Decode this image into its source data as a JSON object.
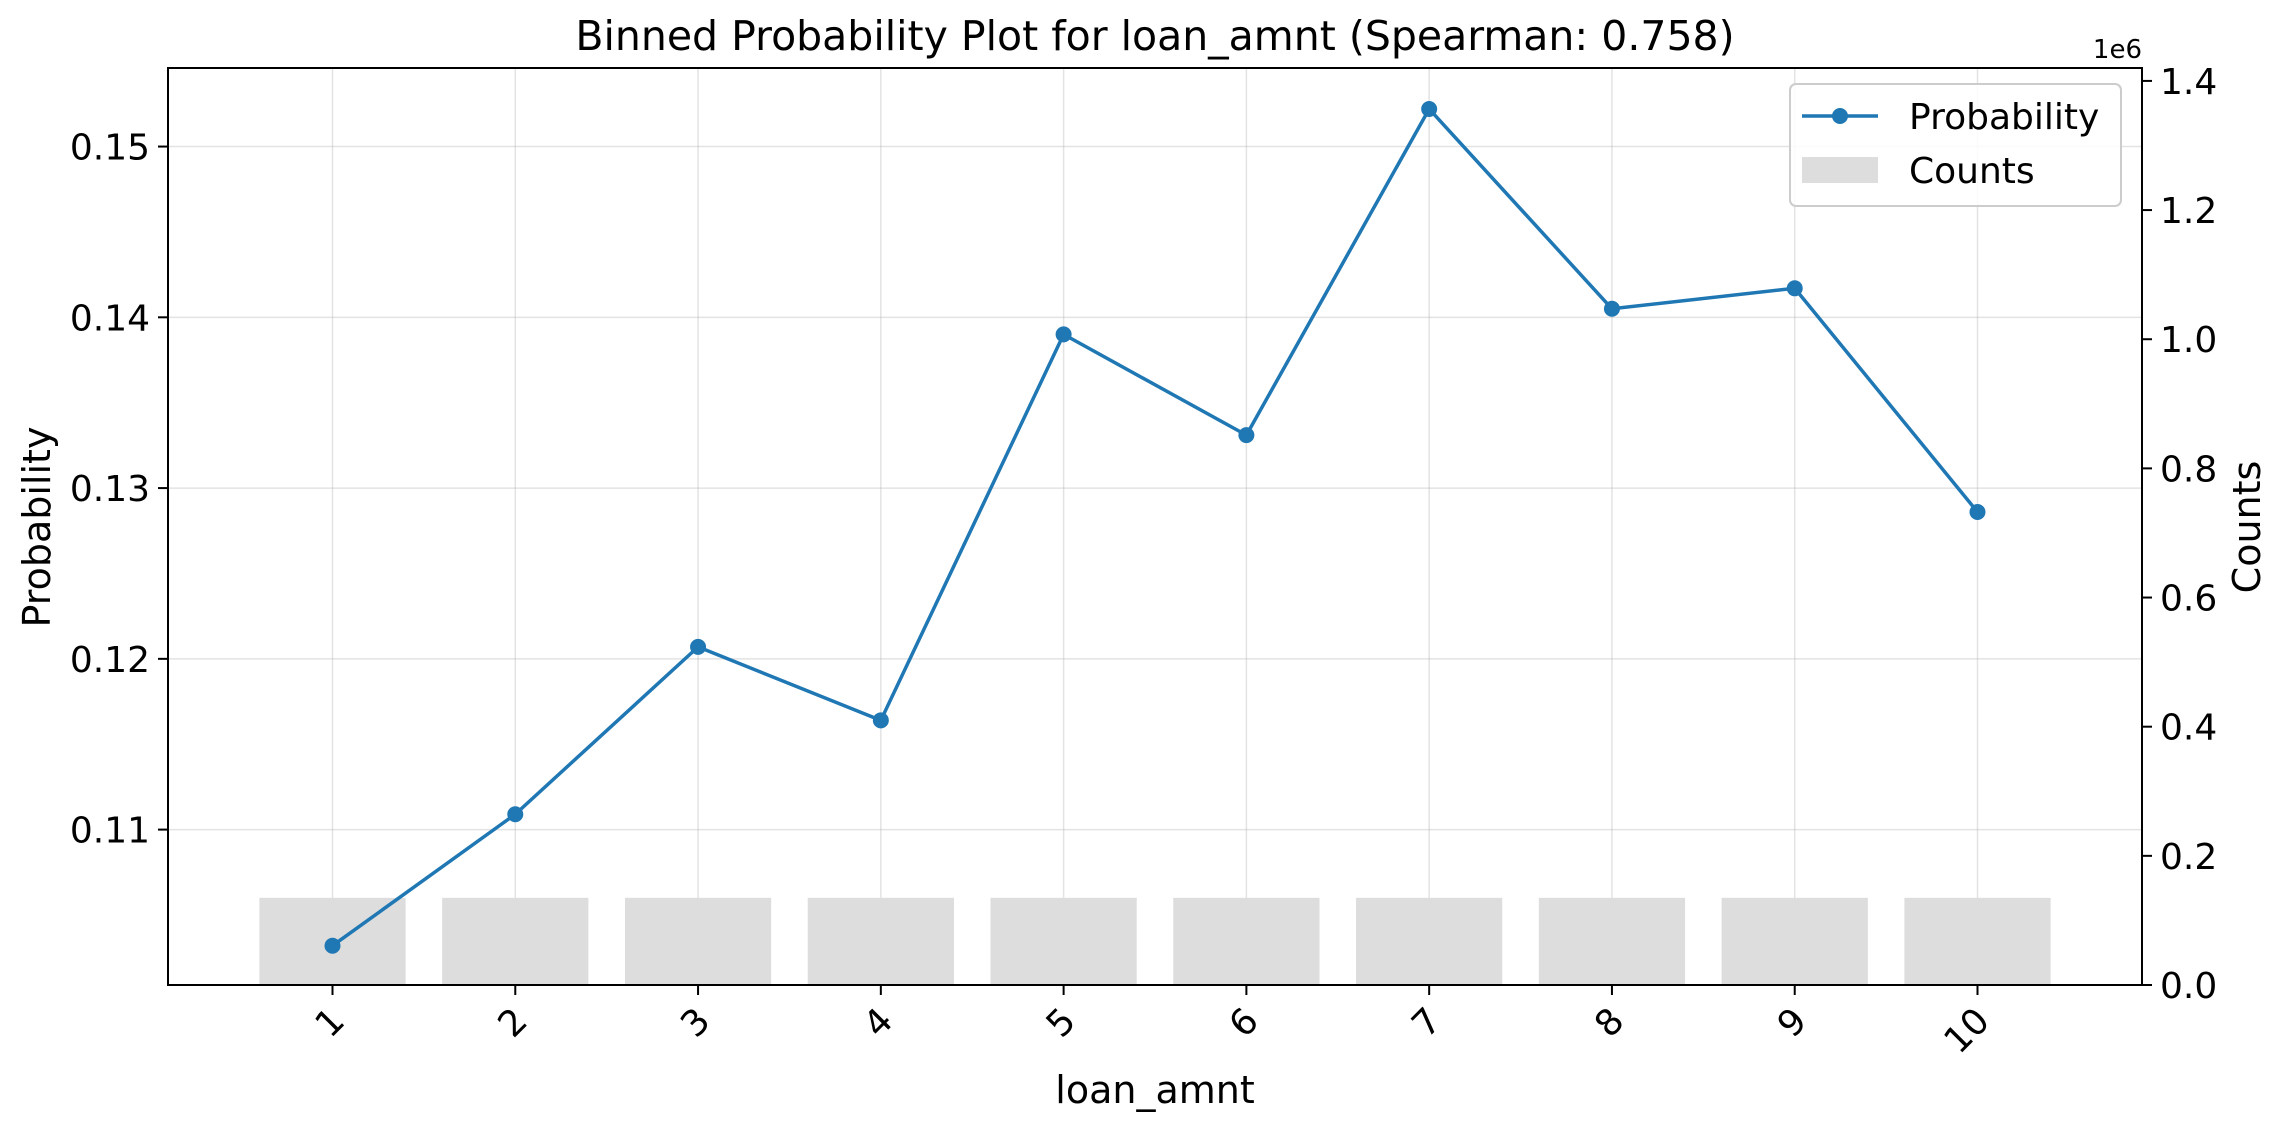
{
  "chart_data": {
    "type": "line+bar",
    "title": "Binned Probability Plot for loan_amnt (Spearman: 0.758)",
    "xlabel": "loan_amnt",
    "ylabel_left": "Probability",
    "ylabel_right": "Counts",
    "right_axis_exponent": "1e6",
    "categories": [
      "1",
      "2",
      "3",
      "4",
      "5",
      "6",
      "7",
      "8",
      "9",
      "10"
    ],
    "series": [
      {
        "name": "Probability",
        "type": "line",
        "axis": "left",
        "color": "#1f77b4",
        "values": [
          0.1032,
          0.1109,
          0.1207,
          0.1164,
          0.139,
          0.1331,
          0.1522,
          0.1405,
          0.1417,
          0.1286
        ]
      },
      {
        "name": "Counts",
        "type": "bar",
        "axis": "right",
        "color": "#dddddd",
        "values": [
          135000,
          135000,
          135000,
          135000,
          135000,
          135000,
          135000,
          135000,
          135000,
          135000
        ]
      }
    ],
    "ylim_left": [
      0.1009,
      0.1546
    ],
    "yticks_left": [
      "0.11",
      "0.12",
      "0.13",
      "0.14",
      "0.15"
    ],
    "ylim_right": [
      0,
      1420000
    ],
    "yticks_right": [
      "0.0",
      "0.2",
      "0.4",
      "0.6",
      "0.8",
      "1.0",
      "1.2",
      "1.4"
    ],
    "grid": true,
    "legend_position": "top-right"
  }
}
